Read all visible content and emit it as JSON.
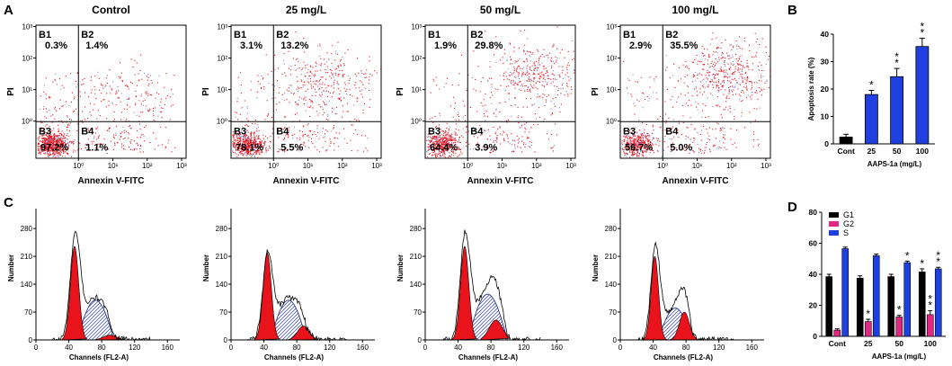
{
  "panel_letters": [
    "A",
    "B",
    "C",
    "D"
  ],
  "chart_data": [
    {
      "type": "scatter",
      "panel": "A",
      "xlabel": "Annexin V-FITC",
      "ylabel": "PI",
      "x_ticks": [
        "10⁰",
        "10¹",
        "10²",
        "10³"
      ],
      "y_ticks": [
        "10³",
        "10²",
        "10¹",
        "10⁰"
      ],
      "quadrant_names": [
        "B1",
        "B2",
        "B3",
        "B4"
      ],
      "plots": [
        {
          "title": "Control",
          "quadrants": [
            "0.3%",
            "1.4%",
            "97.2%",
            "1.1%"
          ]
        },
        {
          "title": "25 mg/L",
          "quadrants": [
            "3.1%",
            "13.2%",
            "78.1%",
            "5.5%"
          ]
        },
        {
          "title": "50 mg/L",
          "quadrants": [
            "1.9%",
            "29.8%",
            "64.4%",
            "3.9%"
          ]
        },
        {
          "title": "100 mg/L",
          "quadrants": [
            "2.9%",
            "35.5%",
            "56.7%",
            "5.0%"
          ]
        }
      ]
    },
    {
      "type": "bar",
      "panel": "B",
      "categories": [
        "Cont",
        "25",
        "50",
        "100"
      ],
      "values": [
        2.5,
        18,
        24.5,
        35.5
      ],
      "errors": [
        1,
        1.5,
        3,
        3
      ],
      "significance": [
        "",
        "*",
        "**",
        "**"
      ],
      "ylabel": "Apoptosis rate (%)",
      "xlabel": "AAPS-1a (mg/L)",
      "ylim": [
        0,
        40
      ],
      "yticks": [
        0,
        10,
        20,
        30,
        40
      ],
      "color": "#1f3fe0"
    },
    {
      "type": "area",
      "panel": "C",
      "xlabel": "Channels (FL2-A)",
      "ylabel": "Number",
      "xticks": [
        0,
        40,
        80,
        120,
        160
      ],
      "yticks": [
        0,
        70,
        140,
        210,
        280
      ],
      "xlim": [
        0,
        175
      ],
      "ylim": [
        0,
        330
      ],
      "plots": [
        {
          "g1_mu": 47,
          "g1_sd": 5,
          "g1_h": 235,
          "s_start": 50,
          "s_end": 95,
          "s_h": 100,
          "g2_mu": 90,
          "g2_sd": 8,
          "g2_h": 12,
          "total_peak": 300
        },
        {
          "g1_mu": 44,
          "g1_sd": 5,
          "g1_h": 220,
          "s_start": 48,
          "s_end": 92,
          "s_h": 100,
          "g2_mu": 88,
          "g2_sd": 7,
          "g2_h": 35,
          "total_peak": 250
        },
        {
          "g1_mu": 48,
          "g1_sd": 5,
          "g1_h": 235,
          "s_start": 52,
          "s_end": 100,
          "s_h": 115,
          "g2_mu": 86,
          "g2_sd": 8,
          "g2_h": 50,
          "total_peak": 305
        },
        {
          "g1_mu": 42,
          "g1_sd": 4.5,
          "g1_h": 210,
          "s_start": 46,
          "s_end": 88,
          "s_h": 80,
          "g2_mu": 78,
          "g2_sd": 6,
          "g2_h": 70,
          "total_peak": 270
        }
      ]
    },
    {
      "type": "bar",
      "panel": "D",
      "categories": [
        "Cont",
        "25",
        "50",
        "100"
      ],
      "series": [
        {
          "name": "G1",
          "color": "#000000",
          "values": [
            38.5,
            37.5,
            38.5,
            41.5
          ],
          "errors": [
            1.5,
            1.5,
            1.5,
            2
          ],
          "significance": [
            "",
            "",
            "",
            "*"
          ]
        },
        {
          "name": "G2",
          "color": "#e02882",
          "values": [
            4,
            9.5,
            12.5,
            14
          ],
          "errors": [
            0.8,
            1.5,
            1,
            2.5
          ],
          "significance": [
            "",
            "*",
            "*",
            "**"
          ]
        },
        {
          "name": "S",
          "color": "#1f3fe0",
          "values": [
            56.5,
            52,
            47.5,
            43.5
          ],
          "errors": [
            1,
            1,
            1,
            1
          ],
          "significance": [
            "",
            "",
            "*",
            "**"
          ]
        }
      ],
      "xlabel": "AAPS-1a (mg/L)",
      "ylabel": "",
      "ylim": [
        0,
        80
      ],
      "yticks": [
        0,
        20,
        40,
        60,
        80
      ]
    }
  ]
}
